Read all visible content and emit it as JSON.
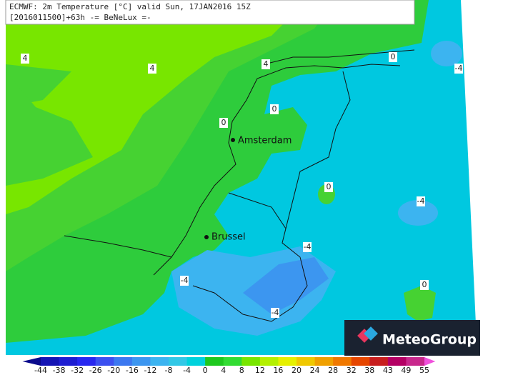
{
  "header": {
    "line1": "ECMWF: 2m Temperature [°C] valid Sun, 17JAN2016 15Z",
    "line2": "[2016011500]+63h -= BeNeLux =-"
  },
  "cities": [
    {
      "name": "Amsterdam"
    },
    {
      "name": "Brussel"
    }
  ],
  "contour_labels": [
    "4",
    "4",
    "4",
    "0",
    "0",
    "0",
    "0",
    "0",
    "-4",
    "-4",
    "-4",
    "-4",
    "-4"
  ],
  "logo": "MeteoGroup",
  "colorbar": {
    "ticks": [
      -44,
      -38,
      -32,
      -26,
      -20,
      -16,
      -12,
      -8,
      -4,
      0,
      4,
      8,
      12,
      16,
      20,
      24,
      28,
      32,
      38,
      43,
      49,
      55
    ],
    "colors": [
      "#0a0a8c",
      "#1414b4",
      "#1e1ed2",
      "#2828f0",
      "#3c50f0",
      "#3c78f0",
      "#3c96f0",
      "#3cb4f0",
      "#32c8e6",
      "#00d2dc",
      "#1ec81e",
      "#32dc32",
      "#78e600",
      "#b4f000",
      "#e6f000",
      "#f0c800",
      "#f0a000",
      "#f07800",
      "#e64600",
      "#c81e1e",
      "#b40064",
      "#c8288c",
      "#f050dc"
    ]
  }
}
